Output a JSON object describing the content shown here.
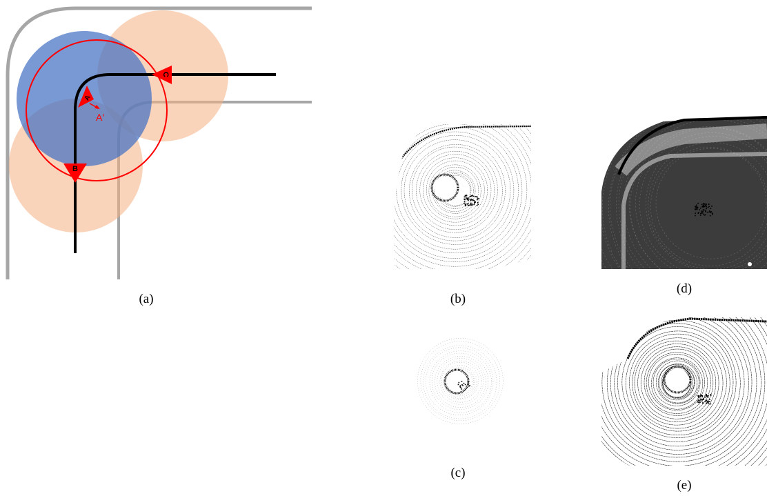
{
  "figure": {
    "panels": [
      {
        "id": "a",
        "caption": "(a)"
      },
      {
        "id": "b",
        "caption": "(b)"
      },
      {
        "id": "c",
        "caption": "(c)"
      },
      {
        "id": "d",
        "caption": "(d)"
      },
      {
        "id": "e",
        "caption": "(e)"
      }
    ],
    "diagram": {
      "markers": {
        "a": "A",
        "b": "B",
        "c": "C",
        "a_prime": "A′"
      },
      "colors": {
        "road_edge": "#a6a6a6",
        "trajectory": "#000000",
        "query_circle": "#4472c4",
        "neighbor_circle": "#f4b183",
        "search_radius": "#ff0000",
        "marker": "#ff0000"
      }
    },
    "colors": {
      "point_cloud": "#000000",
      "background": "#ffffff"
    }
  }
}
